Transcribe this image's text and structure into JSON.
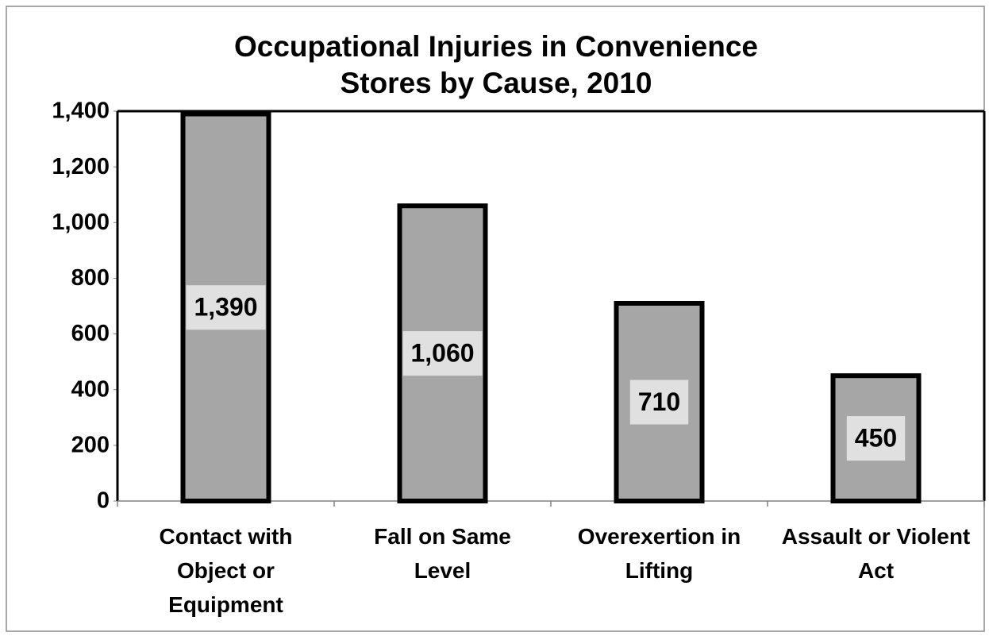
{
  "chart_data": {
    "type": "bar",
    "title": "Occupational Injuries in Convenience Stores by Cause, 2010",
    "categories": [
      "Contact with Object or Equipment",
      "Fall on Same Level",
      "Overexertion in Lifting",
      "Assault or Violent Act"
    ],
    "values": [
      1390,
      1060,
      710,
      450
    ],
    "value_labels": [
      "1,390",
      "1,060",
      "710",
      "450"
    ],
    "color": "#a6a6a6",
    "ylim": [
      0,
      1400
    ],
    "yticks": [
      0,
      200,
      400,
      600,
      800,
      {
        "value": 1000,
        "label": "1,000"
      },
      {
        "value": 1200,
        "label": "1,200"
      },
      {
        "value": 1400,
        "label": "1,400"
      }
    ]
  }
}
